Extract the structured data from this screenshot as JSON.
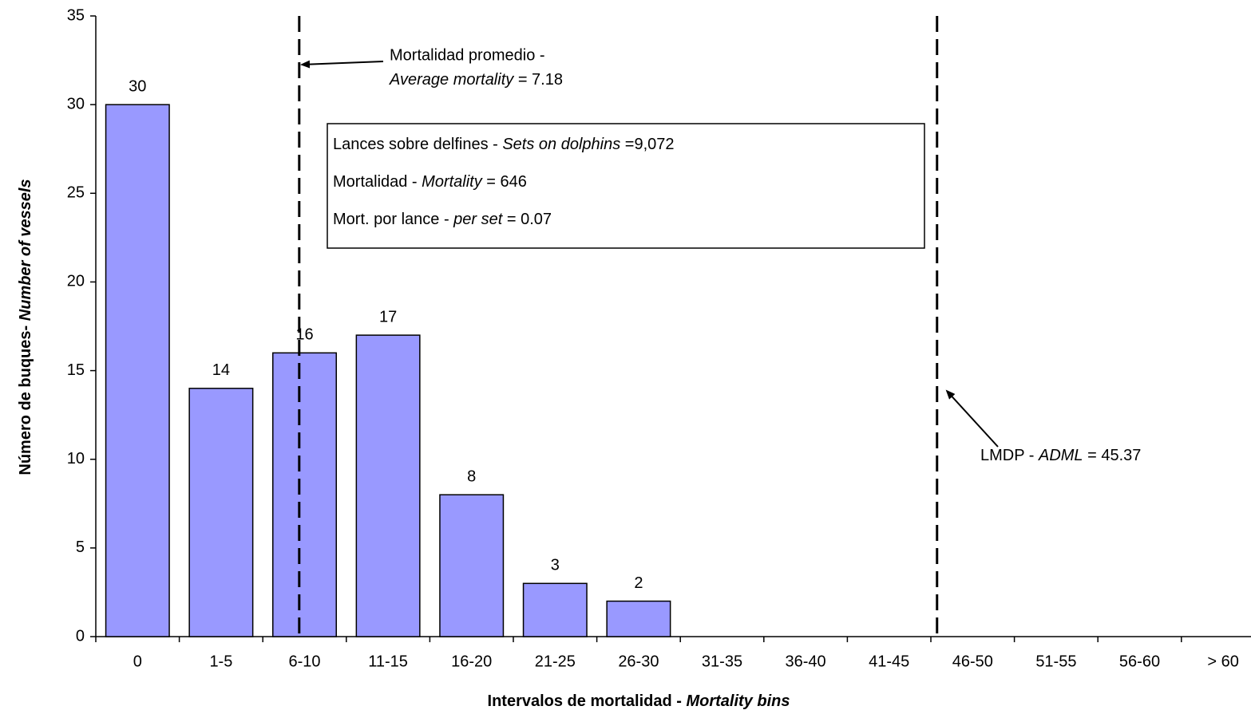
{
  "chart_data": {
    "type": "bar",
    "categories": [
      "0",
      "1-5",
      "6-10",
      "11-15",
      "16-20",
      "21-25",
      "26-30",
      "31-35",
      "36-40",
      "41-45",
      "46-50",
      "51-55",
      "56-60",
      "> 60"
    ],
    "values": [
      30,
      14,
      16,
      17,
      8,
      3,
      2,
      null,
      null,
      null,
      null,
      null,
      null,
      null
    ],
    "color": "#9999ff",
    "ylim": [
      0,
      35
    ],
    "yticks": [
      0,
      5,
      10,
      15,
      20,
      25,
      30,
      35
    ],
    "x_title": {
      "es": "Intervalos  de mortalidad  - ",
      "en": "Mortality  bins"
    },
    "y_title": {
      "es": "Número de buques- ",
      "en": "Number of vessels"
    },
    "reference_lines": [
      {
        "label_es": "Mortalidad promedio -",
        "label_en": "Average mortality",
        "value": 7.18,
        "value_label": " = 7.18"
      },
      {
        "label_es": "LMDP - ",
        "label_en": "ADML",
        "value": 45.37,
        "value_label": " = 45.37"
      }
    ],
    "summary": [
      {
        "label_es": "Lances sobre delfines - ",
        "label_en": "Sets on dolphins",
        "value": 9072,
        "value_label": " =9,072"
      },
      {
        "label_es": "Mortalidad - ",
        "label_en": "Mortality",
        "value": 646,
        "value_label": " = 646"
      },
      {
        "label_es": "Mort. por lance - ",
        "label_en": "per set",
        "value": 0.07,
        "value_label": "  = 0.07"
      }
    ]
  }
}
